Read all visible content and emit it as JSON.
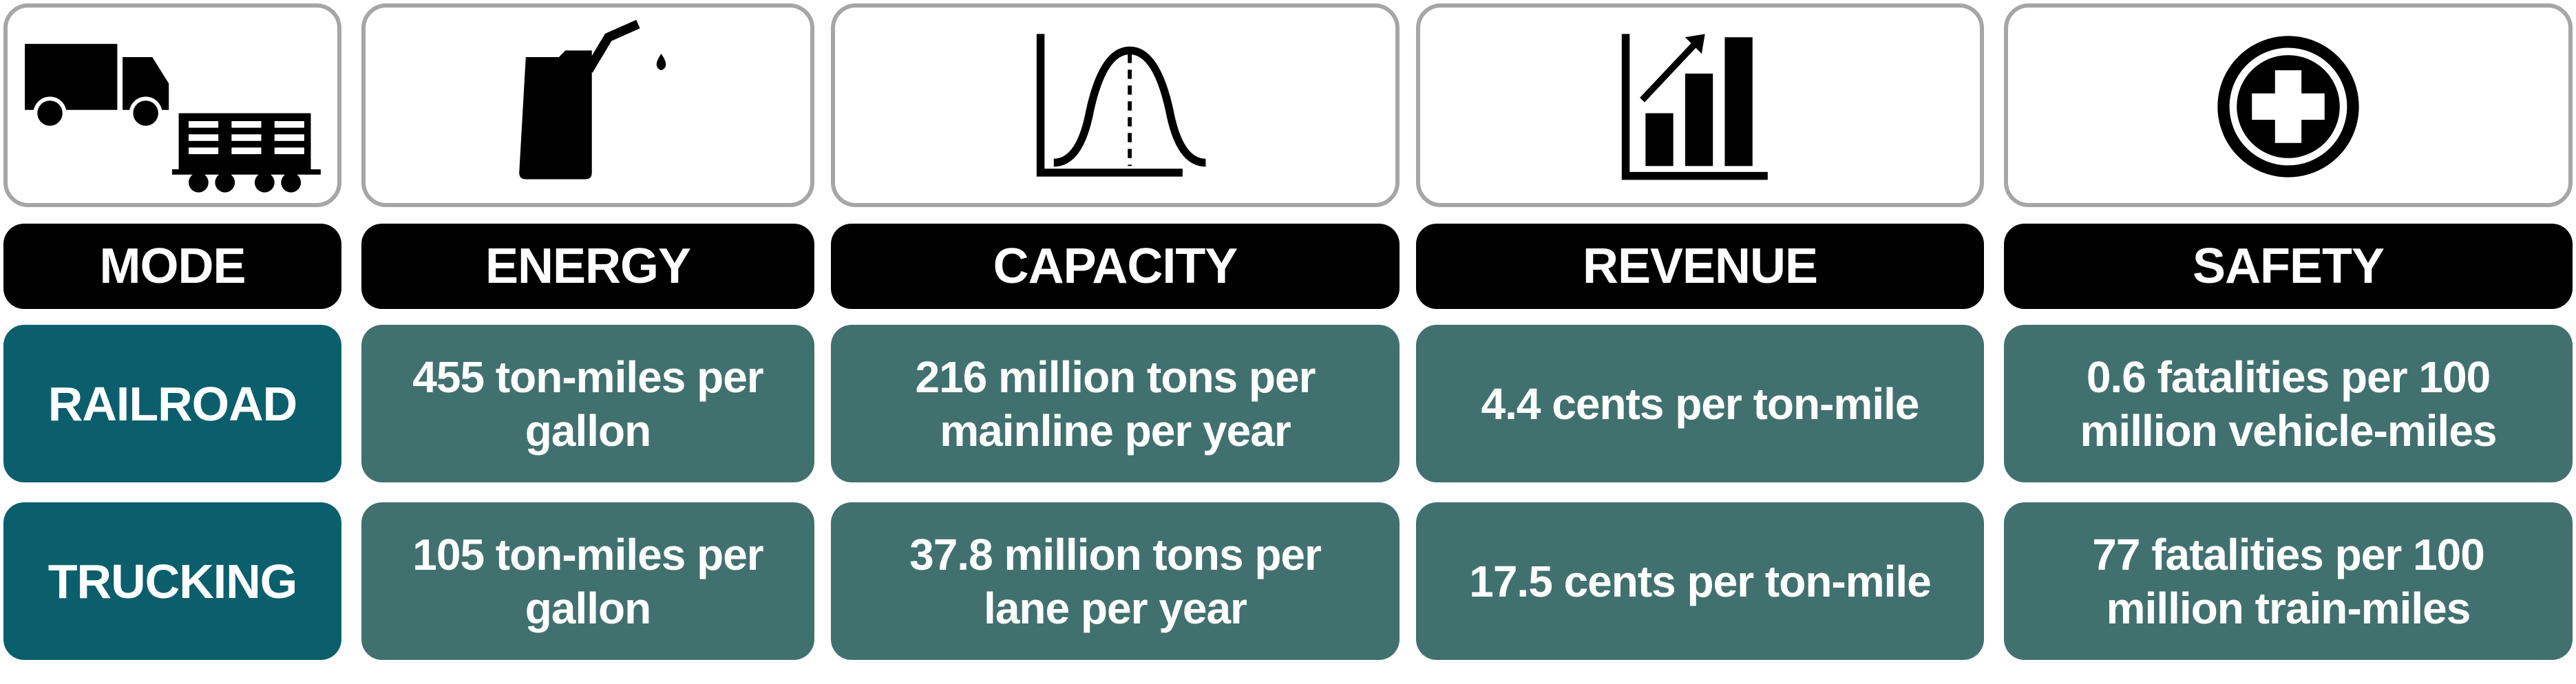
{
  "headers": [
    "MODE",
    "ENERGY",
    "CAPACITY",
    "REVENUE",
    "SAFETY"
  ],
  "rows": [
    {
      "mode": "RAILROAD",
      "cells": [
        [
          "455 ton-miles per",
          "gallon"
        ],
        [
          "216 million tons per",
          "mainline per year"
        ],
        [
          "4.4 cents per ton-mile"
        ],
        [
          "0.6 fatalities per 100",
          "million vehicle-miles"
        ]
      ]
    },
    {
      "mode": "TRUCKING",
      "cells": [
        [
          "105 ton-miles per",
          "gallon"
        ],
        [
          "37.8 million tons per",
          "lane per year"
        ],
        [
          "17.5 cents per ton-mile"
        ],
        [
          "77 fatalities per 100",
          "million train-miles"
        ]
      ]
    }
  ]
}
